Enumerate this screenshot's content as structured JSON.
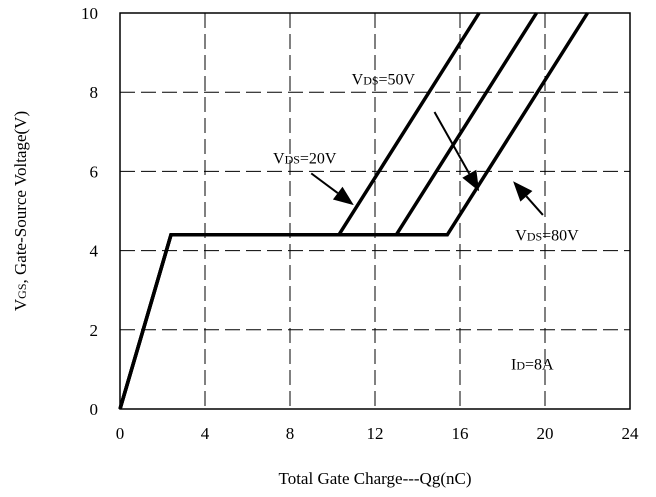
{
  "chart_data": {
    "type": "line",
    "title": "",
    "xlabel": "Total Gate Charge---Qg(nC)",
    "ylabel": "VGS, Gate-Source Voltage(V)",
    "ylabel_parts": {
      "main": "V",
      "sub": "GS",
      "rest": ", Gate-Source Voltage(V)"
    },
    "xlim": [
      0,
      24
    ],
    "ylim": [
      0,
      10
    ],
    "x_ticks": [
      0,
      4,
      8,
      12,
      16,
      20,
      24
    ],
    "y_ticks": [
      0,
      2,
      4,
      6,
      8,
      10
    ],
    "x_tick_labels": [
      "0",
      "4",
      "8",
      "12",
      "16",
      "20",
      "24"
    ],
    "y_tick_labels": [
      "0",
      "2",
      "4",
      "6",
      "8",
      "10"
    ],
    "grid": true,
    "series": [
      {
        "name": "VDS=20V",
        "points": [
          [
            0,
            0
          ],
          [
            2.4,
            4.4
          ],
          [
            10.3,
            4.4
          ],
          [
            16.9,
            10
          ]
        ]
      },
      {
        "name": "VDS=50V",
        "points": [
          [
            0,
            0
          ],
          [
            2.4,
            4.4
          ],
          [
            13.0,
            4.4
          ],
          [
            19.6,
            10
          ]
        ]
      },
      {
        "name": "VDS=80V",
        "points": [
          [
            0,
            0
          ],
          [
            2.4,
            4.4
          ],
          [
            15.4,
            4.4
          ],
          [
            22.0,
            10
          ]
        ]
      }
    ],
    "annotations": [
      {
        "id": "vds50",
        "main": "V",
        "sub": "DS",
        "rest": "=50V",
        "text_at": [
          10.9,
          8.2
        ],
        "arrow_from": [
          14.8,
          7.5
        ],
        "arrow_to": [
          16.9,
          5.5
        ]
      },
      {
        "id": "vds20",
        "main": "V",
        "sub": "DS",
        "rest": "=20V",
        "text_at": [
          7.2,
          6.2
        ],
        "arrow_from": [
          9.0,
          5.95
        ],
        "arrow_to": [
          11.0,
          5.15
        ]
      },
      {
        "id": "vds80",
        "main": "V",
        "sub": "DS",
        "rest": "=80V",
        "text_at": [
          18.6,
          4.25
        ],
        "arrow_from": [
          19.9,
          4.9
        ],
        "arrow_to": [
          18.5,
          5.75
        ]
      },
      {
        "id": "id8a",
        "main": "I",
        "sub": "D",
        "rest": "=8A",
        "text_at": [
          18.4,
          1.0
        ]
      }
    ]
  }
}
